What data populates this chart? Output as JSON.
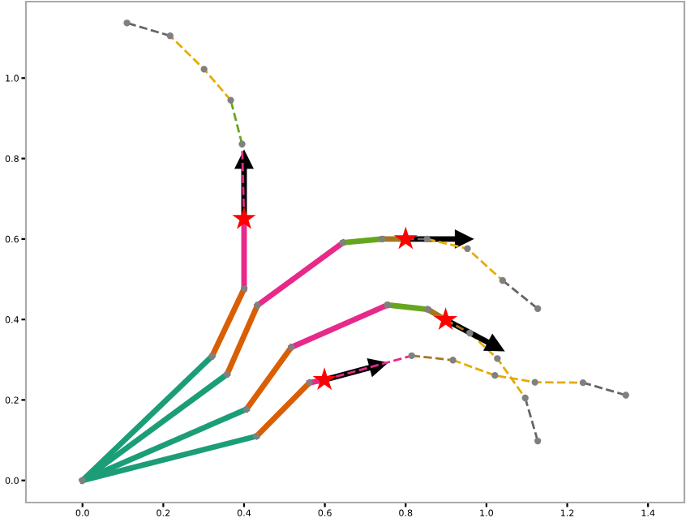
{
  "chart_data": {
    "type": "line",
    "xlim": [
      -0.14,
      1.49
    ],
    "ylim": [
      -0.055,
      1.19
    ],
    "xticks": [
      {
        "value": 0,
        "label": "0.0"
      },
      {
        "value": 0.2,
        "label": "0.2"
      },
      {
        "value": 0.4,
        "label": "0.4"
      },
      {
        "value": 0.6,
        "label": "0.6"
      },
      {
        "value": 0.8,
        "label": "0.8"
      },
      {
        "value": 1.0,
        "label": "1.0"
      },
      {
        "value": 1.2,
        "label": "1.2"
      },
      {
        "value": 1.4,
        "label": "1.4"
      }
    ],
    "yticks": [
      {
        "value": 0,
        "label": "0.0"
      },
      {
        "value": 0.2,
        "label": "0.2"
      },
      {
        "value": 0.4,
        "label": "0.4"
      },
      {
        "value": 0.6,
        "label": "0.6"
      },
      {
        "value": 0.8,
        "label": "0.8"
      },
      {
        "value": 1.0,
        "label": "1.0"
      }
    ],
    "grid": false,
    "series": [
      {
        "line_style": "solid",
        "color": "#1b9e77",
        "x": [
          0,
          0.321
        ],
        "values": [
          0,
          0.309
        ]
      },
      {
        "line_style": "solid",
        "color": "#d95f02",
        "x": [
          0.321,
          0.4
        ],
        "values": [
          0.309,
          0.476
        ]
      },
      {
        "line_style": "solid",
        "color": "#e7298a",
        "x": [
          0.4,
          0.4
        ],
        "values": [
          0.476,
          0.65
        ]
      },
      {
        "line_style": "solid",
        "color": "#1b9e77",
        "x": [
          0,
          0.358
        ],
        "values": [
          0,
          0.264
        ]
      },
      {
        "line_style": "solid",
        "color": "#d95f02",
        "x": [
          0.358,
          0.433
        ],
        "values": [
          0.264,
          0.435
        ]
      },
      {
        "line_style": "solid",
        "color": "#e7298a",
        "x": [
          0.433,
          0.645
        ],
        "values": [
          0.435,
          0.591
        ]
      },
      {
        "line_style": "solid",
        "color": "#66a61e",
        "x": [
          0.645,
          0.742
        ],
        "values": [
          0.591,
          0.6
        ]
      },
      {
        "line_style": "solid",
        "color": "#a6761d",
        "x": [
          0.742,
          0.8
        ],
        "values": [
          0.6,
          0.6
        ]
      },
      {
        "line_style": "solid",
        "color": "#1b9e77",
        "x": [
          0,
          0.406
        ],
        "values": [
          0,
          0.177
        ]
      },
      {
        "line_style": "solid",
        "color": "#d95f02",
        "x": [
          0.406,
          0.517
        ],
        "values": [
          0.177,
          0.331
        ]
      },
      {
        "line_style": "solid",
        "color": "#e7298a",
        "x": [
          0.517,
          0.755
        ],
        "values": [
          0.331,
          0.436
        ]
      },
      {
        "line_style": "solid",
        "color": "#66a61e",
        "x": [
          0.755,
          0.855
        ],
        "values": [
          0.436,
          0.425
        ]
      },
      {
        "line_style": "solid",
        "color": "#a6761d",
        "x": [
          0.855,
          0.899
        ],
        "values": [
          0.425,
          0.399
        ]
      },
      {
        "line_style": "solid",
        "color": "#1b9e77",
        "x": [
          0,
          0.431
        ],
        "values": [
          0,
          0.11
        ]
      },
      {
        "line_style": "solid",
        "color": "#d95f02",
        "x": [
          0.431,
          0.562
        ],
        "values": [
          0.11,
          0.243
        ]
      },
      {
        "line_style": "solid",
        "color": "#e7298a",
        "x": [
          0.562,
          0.599
        ],
        "values": [
          0.243,
          0.25
        ]
      },
      {
        "line_style": "dashed",
        "color": "#e6ab02",
        "x": [
          0.959,
          1.027,
          1.096
        ],
        "values": [
          0.366,
          0.303,
          0.205
        ]
      },
      {
        "line_style": "solid",
        "marker": "triangle",
        "color": "#000000",
        "x": [
          0.4,
          0.4
        ],
        "values": [
          0.65,
          0.797
        ]
      },
      {
        "line_style": "solid",
        "marker": "triangle",
        "color": "#000000",
        "x": [
          0.8,
          0.944
        ],
        "values": [
          0.6,
          0.6
        ]
      },
      {
        "line_style": "solid",
        "marker": "triangle",
        "color": "#000000",
        "x": [
          0.899,
          1.023
        ],
        "values": [
          0.399,
          0.333
        ]
      },
      {
        "line_style": "solid",
        "marker": "triangle",
        "color": "#000000",
        "x": [
          0.599,
          0.732
        ],
        "values": [
          0.25,
          0.286
        ]
      },
      {
        "line_style": "dashed",
        "color": "#e7298a",
        "x": [
          0.4,
          0.395
        ],
        "values": [
          0.65,
          0.836
        ]
      },
      {
        "line_style": "dashed",
        "color": "#66a61e",
        "x": [
          0.395,
          0.367
        ],
        "values": [
          0.836,
          0.945
        ]
      },
      {
        "line_style": "dashed",
        "color": "#e6ab02",
        "x": [
          0.367,
          0.301,
          0.217
        ],
        "values": [
          0.945,
          1.022,
          1.105
        ]
      },
      {
        "line_style": "dashed",
        "color": "#666666",
        "x": [
          0.217,
          0.11
        ],
        "values": [
          1.105,
          1.137
        ]
      },
      {
        "line_style": "dashed",
        "color": "#666666",
        "x": [
          0.8,
          0.853
        ],
        "values": [
          0.6,
          0.6
        ]
      },
      {
        "line_style": "dashed",
        "color": "#e6ab02",
        "x": [
          0.853,
          0.953,
          1.04
        ],
        "values": [
          0.6,
          0.576,
          0.497
        ]
      },
      {
        "line_style": "dashed",
        "color": "#666666",
        "x": [
          1.04,
          1.127
        ],
        "values": [
          0.497,
          0.427
        ]
      },
      {
        "line_style": "dashed",
        "color": "#a6761d",
        "x": [
          0.899,
          0.959
        ],
        "values": [
          0.399,
          0.366
        ]
      },
      {
        "line_style": "dashed",
        "color": "#666666",
        "x": [
          1.096,
          1.127
        ],
        "values": [
          0.205,
          0.098
        ]
      },
      {
        "line_style": "dashed",
        "color": "#e7298a",
        "x": [
          0.599,
          0.815
        ],
        "values": [
          0.25,
          0.31
        ]
      },
      {
        "line_style": "dashed",
        "color": "#a6761d",
        "x": [
          0.815,
          0.917
        ],
        "values": [
          0.31,
          0.299
        ]
      },
      {
        "line_style": "dashed",
        "color": "#e6ab02",
        "x": [
          0.917,
          1.021,
          1.12,
          1.239
        ],
        "values": [
          0.299,
          0.261,
          0.244,
          0.243
        ]
      },
      {
        "line_style": "dashed",
        "color": "#666666",
        "x": [
          1.239,
          1.345
        ],
        "values": [
          0.243,
          0.212
        ]
      },
      {
        "type": "scatter",
        "marker": "circle",
        "color": "#808080",
        "x": [
          0,
          0.321,
          0.4,
          0.358,
          0.433,
          0.645,
          0.742,
          0.406,
          0.517,
          0.755,
          0.855,
          0.431,
          0.562
        ],
        "values": [
          0,
          0.309,
          0.476,
          0.264,
          0.435,
          0.591,
          0.6,
          0.177,
          0.331,
          0.436,
          0.425,
          0.11,
          0.243
        ]
      },
      {
        "type": "scatter",
        "marker": "circle",
        "color": "#808080",
        "x": [
          0.395,
          0.367,
          0.301,
          0.217,
          0.11,
          0.853,
          0.953,
          1.04,
          1.127,
          0.959,
          1.027,
          1.096,
          1.127,
          0.815,
          0.917,
          1.021,
          1.12,
          1.239,
          1.345
        ],
        "values": [
          0.836,
          0.945,
          1.022,
          1.105,
          1.137,
          0.6,
          0.576,
          0.497,
          0.427,
          0.366,
          0.303,
          0.205,
          0.098,
          0.31,
          0.299,
          0.261,
          0.244,
          0.243,
          0.212
        ]
      },
      {
        "type": "scatter",
        "marker": "star",
        "color": "#ff0000",
        "x": [
          0.4,
          0.8,
          0.899,
          0.599
        ],
        "values": [
          0.65,
          0.6,
          0.399,
          0.25
        ]
      }
    ]
  }
}
